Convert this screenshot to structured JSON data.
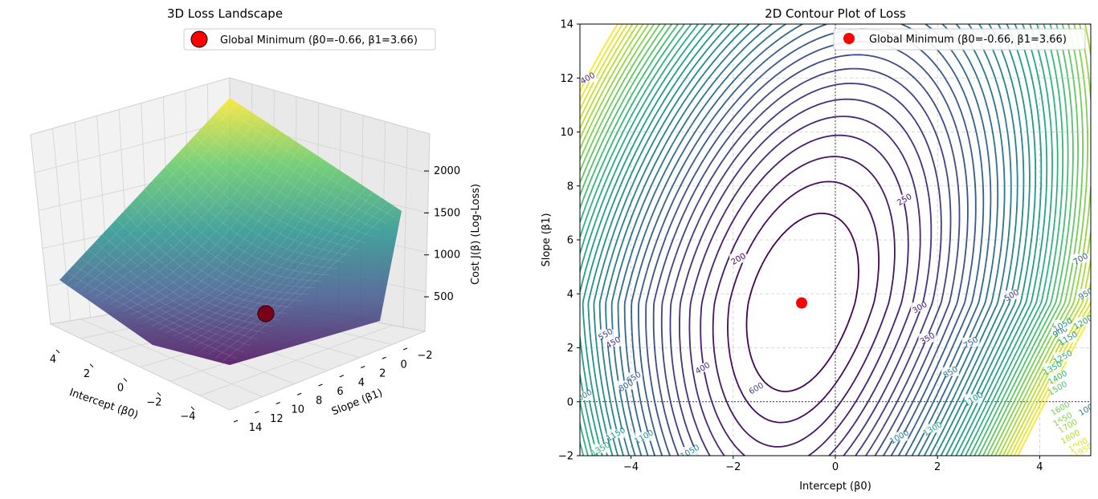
{
  "chart_data": [
    {
      "type": "surface3d",
      "title": "3D Loss Landscape",
      "xlabel": "Intercept (β0)",
      "ylabel": "Slope (β1)",
      "zlabel": "Cost J(β) (Log-Loss)",
      "xlim": [
        -5,
        5
      ],
      "ylim": [
        -2,
        14
      ],
      "zlim": [
        200,
        2300
      ],
      "x_ticks": [
        "4",
        "2",
        "0",
        "−2",
        "−4"
      ],
      "y_ticks": [
        "−2",
        "0",
        "2",
        "4",
        "6",
        "8",
        "10",
        "12",
        "14"
      ],
      "z_ticks": [
        "500",
        "1000",
        "1500",
        "2000"
      ],
      "surface_corners": [
        {
          "x": 5,
          "y": -2,
          "z": 2230
        },
        {
          "x": 5,
          "y": 14,
          "z": 1300
        },
        {
          "x": -5,
          "y": 14,
          "z": 420
        },
        {
          "x": -5,
          "y": -2,
          "z": 1050
        }
      ],
      "minimum": {
        "x": -0.66,
        "y": 3.66,
        "z": 170
      },
      "legend": "Global Minimum (β0=-0.66, β1=3.66)",
      "colormap": "viridis"
    },
    {
      "type": "contour",
      "title": "2D Contour Plot of Loss",
      "xlabel": "Intercept (β0)",
      "ylabel": "Slope (β1)",
      "xlim": [
        -5,
        5
      ],
      "ylim": [
        -2,
        14
      ],
      "x_ticks": [
        "−4",
        "−2",
        "0",
        "2",
        "4"
      ],
      "y_ticks": [
        "−2",
        "0",
        "2",
        "4",
        "6",
        "8",
        "10",
        "12",
        "14"
      ],
      "minimum": {
        "x": -0.66,
        "y": 3.66
      },
      "legend": "Global Minimum (β0=-0.66, β1=3.66)",
      "levels": [
        200,
        250,
        300,
        350,
        400,
        450,
        500,
        550,
        600,
        650,
        700,
        750,
        800,
        850,
        900,
        950,
        1000,
        1050,
        1100,
        1150,
        1200,
        1250,
        1300,
        1350,
        1400,
        1450,
        1500,
        1550,
        1600,
        1650,
        1700,
        1750,
        1800,
        1850,
        1900,
        1950,
        2000
      ],
      "contour_labels": [
        {
          "text": "200",
          "x": -1.9,
          "y": 5.3
        },
        {
          "text": "250",
          "x": 1.35,
          "y": 7.5
        },
        {
          "text": "300",
          "x": 1.65,
          "y": 3.5
        },
        {
          "text": "350",
          "x": 1.8,
          "y": 2.35
        },
        {
          "text": "400",
          "x": -4.85,
          "y": 12
        },
        {
          "text": "400",
          "x": -2.6,
          "y": 1.25
        },
        {
          "text": "450",
          "x": -4.35,
          "y": 2.2
        },
        {
          "text": "500",
          "x": 3.45,
          "y": 3.95
        },
        {
          "text": "550",
          "x": -4.5,
          "y": 2.5
        },
        {
          "text": "600",
          "x": -1.55,
          "y": 0.5
        },
        {
          "text": "650",
          "x": -3.95,
          "y": 0.9
        },
        {
          "text": "700",
          "x": 4.8,
          "y": 5.3
        },
        {
          "text": "750",
          "x": 2.65,
          "y": 2.2
        },
        {
          "text": "800",
          "x": -4.1,
          "y": 0.6
        },
        {
          "text": "850",
          "x": 2.25,
          "y": 1.1
        },
        {
          "text": "900",
          "x": 4.4,
          "y": 2.6
        },
        {
          "text": "950",
          "x": 4.9,
          "y": 4.0
        },
        {
          "text": "1000",
          "x": -4.95,
          "y": 0.2
        },
        {
          "text": "1000",
          "x": 1.25,
          "y": -1.3
        },
        {
          "text": "1050",
          "x": -2.85,
          "y": -1.85
        },
        {
          "text": "1050",
          "x": 4.45,
          "y": 2.85
        },
        {
          "text": "1100",
          "x": -3.75,
          "y": -1.3
        },
        {
          "text": "1100",
          "x": 2.7,
          "y": 0.1
        },
        {
          "text": "1150",
          "x": -4.3,
          "y": -1.2
        },
        {
          "text": "1150",
          "x": 4.55,
          "y": 2.35
        },
        {
          "text": "1200",
          "x": 4.85,
          "y": 2.95
        },
        {
          "text": "1250",
          "x": 4.45,
          "y": 1.65
        },
        {
          "text": "1300",
          "x": 1.9,
          "y": -1.0
        },
        {
          "text": "1350",
          "x": -4.6,
          "y": -1.75
        },
        {
          "text": "1350",
          "x": 4.25,
          "y": 1.25
        },
        {
          "text": "1400",
          "x": 4.35,
          "y": 0.9
        },
        {
          "text": "1500",
          "x": 4.35,
          "y": 0.5
        },
        {
          "text": "1600",
          "x": 4.4,
          "y": -0.25
        },
        {
          "text": "1650",
          "x": 4.45,
          "y": -0.65
        },
        {
          "text": "1700",
          "x": 4.55,
          "y": -0.9
        },
        {
          "text": "1800",
          "x": 4.6,
          "y": -1.3
        },
        {
          "text": "1900",
          "x": 4.75,
          "y": -1.6
        },
        {
          "text": "1950",
          "x": 4.85,
          "y": -1.8
        },
        {
          "text": "1000",
          "x": 4.95,
          "y": -0.25
        }
      ]
    }
  ]
}
